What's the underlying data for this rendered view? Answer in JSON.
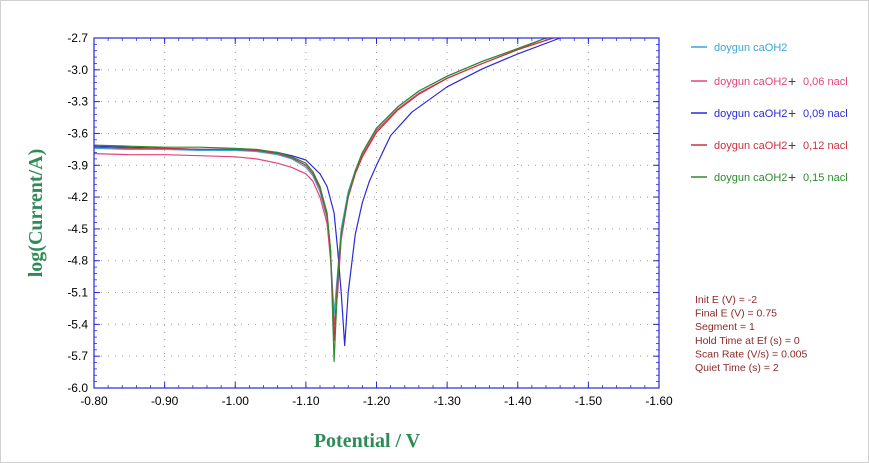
{
  "chart_data": {
    "type": "line",
    "xlabel": "Potential / V",
    "ylabel": "log(Current/A)",
    "xlim": [
      -0.8,
      -1.6
    ],
    "ylim": [
      -6.0,
      -2.7
    ],
    "x_ticks": [
      "-0.80",
      "-0.90",
      "-1.00",
      "-1.10",
      "-1.20",
      "-1.30",
      "-1.40",
      "-1.50",
      "-1.60"
    ],
    "y_ticks": [
      "-2.7",
      "-3.0",
      "-3.3",
      "-3.6",
      "-3.9",
      "-4.2",
      "-4.5",
      "-4.8",
      "-5.1",
      "-5.4",
      "-5.7",
      "-6.0"
    ],
    "grid": "dotted",
    "legend_position": "right",
    "series": [
      {
        "name": "doygun caOH2",
        "legend_parts": [
          "doygun caOH2",
          "",
          ""
        ],
        "color": "#3aa6d8",
        "x": [
          -0.8,
          -0.85,
          -0.9,
          -0.95,
          -1.0,
          -1.03,
          -1.06,
          -1.08,
          -1.1,
          -1.11,
          -1.12,
          -1.13,
          -1.135,
          -1.14,
          -1.145,
          -1.15,
          -1.16,
          -1.17,
          -1.18,
          -1.2,
          -1.23,
          -1.26,
          -1.3,
          -1.35,
          -1.4,
          -1.44
        ],
        "y": [
          -3.74,
          -3.75,
          -3.75,
          -3.76,
          -3.76,
          -3.77,
          -3.8,
          -3.84,
          -3.92,
          -4.0,
          -4.15,
          -4.4,
          -4.75,
          -5.3,
          -4.9,
          -4.5,
          -4.15,
          -3.95,
          -3.78,
          -3.55,
          -3.35,
          -3.2,
          -3.06,
          -2.92,
          -2.8,
          -2.7
        ]
      },
      {
        "name": "doygun caOH2 + 0,06 nacl",
        "legend_parts": [
          "doygun caOH2",
          "+",
          "0,06 nacl"
        ],
        "color": "#e0457b",
        "x": [
          -0.8,
          -0.85,
          -0.9,
          -0.95,
          -1.0,
          -1.03,
          -1.06,
          -1.08,
          -1.1,
          -1.11,
          -1.12,
          -1.13,
          -1.135,
          -1.14,
          -1.145,
          -1.15,
          -1.16,
          -1.17,
          -1.18,
          -1.2,
          -1.23,
          -1.26,
          -1.3,
          -1.35,
          -1.4,
          -1.44
        ],
        "y": [
          -3.79,
          -3.8,
          -3.8,
          -3.81,
          -3.82,
          -3.84,
          -3.88,
          -3.92,
          -3.98,
          -4.05,
          -4.2,
          -4.45,
          -4.8,
          -5.4,
          -5.1,
          -4.6,
          -4.2,
          -3.97,
          -3.8,
          -3.57,
          -3.37,
          -3.22,
          -3.08,
          -2.94,
          -2.81,
          -2.7
        ]
      },
      {
        "name": "doygun caOH2 + 0,09 nacl",
        "legend_parts": [
          "doygun caOH2",
          "+",
          "0,09 nacl"
        ],
        "color": "#2a2ad8",
        "x": [
          -0.8,
          -0.85,
          -0.9,
          -0.95,
          -1.0,
          -1.03,
          -1.06,
          -1.08,
          -1.1,
          -1.12,
          -1.13,
          -1.14,
          -1.145,
          -1.15,
          -1.155,
          -1.16,
          -1.17,
          -1.18,
          -1.19,
          -1.2,
          -1.22,
          -1.25,
          -1.3,
          -1.35,
          -1.4,
          -1.46
        ],
        "y": [
          -3.72,
          -3.73,
          -3.74,
          -3.75,
          -3.75,
          -3.76,
          -3.78,
          -3.81,
          -3.85,
          -3.98,
          -4.1,
          -4.35,
          -4.7,
          -5.1,
          -5.6,
          -5.1,
          -4.55,
          -4.25,
          -4.05,
          -3.9,
          -3.62,
          -3.4,
          -3.16,
          -2.99,
          -2.85,
          -2.7
        ]
      },
      {
        "name": "doygun caOH2 + 0,12 nacl",
        "legend_parts": [
          "doygun caOH2",
          "+",
          "0,12 nacl"
        ],
        "color": "#c8323c",
        "x": [
          -0.8,
          -0.85,
          -0.9,
          -0.95,
          -1.0,
          -1.03,
          -1.06,
          -1.08,
          -1.1,
          -1.11,
          -1.12,
          -1.13,
          -1.135,
          -1.14,
          -1.145,
          -1.15,
          -1.16,
          -1.17,
          -1.18,
          -1.2,
          -1.23,
          -1.26,
          -1.3,
          -1.35,
          -1.4,
          -1.45
        ],
        "y": [
          -3.73,
          -3.74,
          -3.74,
          -3.75,
          -3.75,
          -3.76,
          -3.79,
          -3.83,
          -3.9,
          -3.98,
          -4.12,
          -4.38,
          -4.7,
          -5.55,
          -4.95,
          -4.55,
          -4.2,
          -3.98,
          -3.82,
          -3.59,
          -3.38,
          -3.23,
          -3.08,
          -2.94,
          -2.81,
          -2.7
        ]
      },
      {
        "name": "doygun caOH2 + 0,15 nacl",
        "legend_parts": [
          "doygun caOH2",
          "+",
          "0,15 nacl"
        ],
        "color": "#2e8b2e",
        "x": [
          -0.8,
          -0.85,
          -0.9,
          -0.95,
          -1.0,
          -1.03,
          -1.06,
          -1.08,
          -1.1,
          -1.11,
          -1.12,
          -1.13,
          -1.135,
          -1.14,
          -1.145,
          -1.15,
          -1.16,
          -1.17,
          -1.18,
          -1.2,
          -1.23,
          -1.26,
          -1.3,
          -1.35,
          -1.4,
          -1.44
        ],
        "y": [
          -3.71,
          -3.72,
          -3.73,
          -3.73,
          -3.74,
          -3.75,
          -3.78,
          -3.82,
          -3.88,
          -3.96,
          -4.1,
          -4.35,
          -4.7,
          -5.75,
          -5.0,
          -4.55,
          -4.18,
          -3.95,
          -3.78,
          -3.55,
          -3.35,
          -3.2,
          -3.06,
          -2.92,
          -2.8,
          -2.7
        ]
      }
    ]
  },
  "parameters": [
    "Init E (V) = -2",
    "Final E (V) = 0.75",
    "Segment = 1",
    "Hold Time at Ef (s) = 0",
    "Scan Rate (V/s) = 0.005",
    "Quiet Time (s) = 2"
  ]
}
